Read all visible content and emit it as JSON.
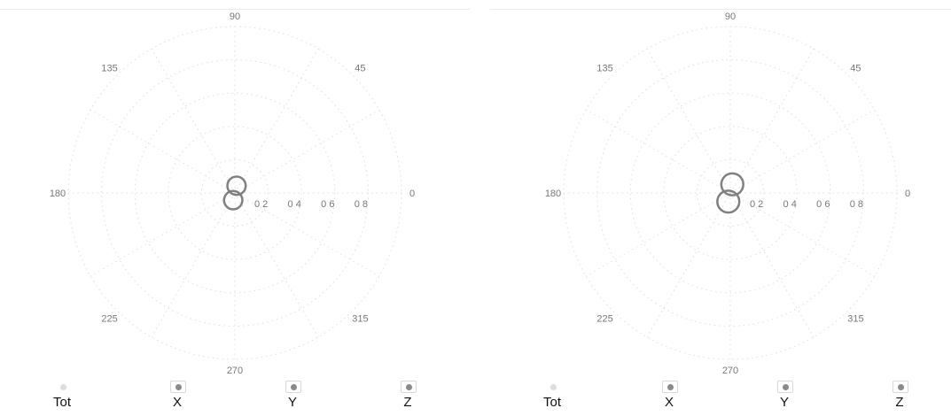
{
  "chart_data": [
    {
      "type": "polar",
      "angle_labels": [
        "0",
        "45",
        "90",
        "135",
        "180",
        "225",
        "270",
        "315"
      ],
      "radial_labels": [
        "0.2",
        "0.4",
        "0.6",
        "0.8"
      ],
      "display_radial_labels": [
        "0 2",
        "0 4",
        "0 6",
        "0 8"
      ],
      "rlim": [
        0,
        1
      ],
      "grid": true,
      "pattern": {
        "shape": "figure-eight lobes near origin",
        "color": "#808080",
        "approx_max_r": 0.1
      },
      "legend": {
        "items": [
          {
            "label": "Tot",
            "selected": false
          },
          {
            "label": "X",
            "selected": true
          },
          {
            "label": "Y",
            "selected": true
          },
          {
            "label": "Z",
            "selected": true
          }
        ]
      }
    },
    {
      "type": "polar",
      "angle_labels": [
        "0",
        "45",
        "90",
        "135",
        "180",
        "225",
        "270",
        "315"
      ],
      "radial_labels": [
        "0.2",
        "0.4",
        "0.6",
        "0.8"
      ],
      "display_radial_labels": [
        "0 2",
        "0 4",
        "0 6",
        "0 8"
      ],
      "rlim": [
        0,
        1
      ],
      "grid": true,
      "pattern": {
        "shape": "figure-eight lobes near origin",
        "color": "#808080",
        "approx_max_r": 0.12
      },
      "legend": {
        "items": [
          {
            "label": "Tot",
            "selected": false
          },
          {
            "label": "X",
            "selected": true
          },
          {
            "label": "Y",
            "selected": true
          },
          {
            "label": "Z",
            "selected": true
          }
        ]
      }
    }
  ]
}
